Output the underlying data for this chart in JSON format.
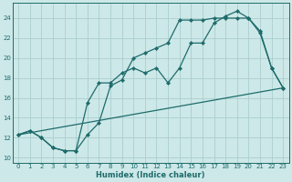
{
  "xlabel": "Humidex (Indice chaleur)",
  "xlim": [
    -0.5,
    23.5
  ],
  "ylim": [
    9.5,
    25.5
  ],
  "xticks": [
    0,
    1,
    2,
    3,
    4,
    5,
    6,
    7,
    8,
    9,
    10,
    11,
    12,
    13,
    14,
    15,
    16,
    17,
    18,
    19,
    20,
    21,
    22,
    23
  ],
  "yticks": [
    10,
    12,
    14,
    16,
    18,
    20,
    22,
    24
  ],
  "background_color": "#cde8e8",
  "grid_color": "#aacece",
  "line_color": "#1e6b6b",
  "line1_x": [
    0,
    1,
    2,
    3,
    4,
    5,
    6,
    7,
    8,
    9,
    10,
    11,
    12,
    13,
    14,
    15,
    16,
    17,
    18,
    19,
    20,
    21,
    22,
    23
  ],
  "line1_y": [
    12.3,
    12.7,
    12.0,
    11.0,
    10.7,
    10.7,
    12.3,
    13.5,
    17.2,
    17.8,
    20.0,
    20.5,
    21.0,
    21.5,
    23.8,
    23.8,
    23.8,
    24.0,
    24.0,
    24.0,
    24.0,
    22.7,
    19.0,
    17.0
  ],
  "line2_x": [
    0,
    1,
    2,
    3,
    4,
    5,
    6,
    7,
    8,
    9,
    10,
    11,
    12,
    13,
    14,
    15,
    16,
    17,
    18,
    19,
    20,
    21,
    22,
    23
  ],
  "line2_y": [
    12.3,
    12.7,
    12.0,
    11.0,
    10.7,
    10.7,
    15.5,
    17.5,
    17.5,
    18.5,
    19.0,
    18.5,
    19.0,
    17.5,
    19.0,
    21.5,
    21.5,
    23.5,
    24.2,
    24.7,
    24.0,
    22.5,
    19.0,
    17.0
  ],
  "line3_x": [
    0,
    23
  ],
  "line3_y": [
    12.3,
    17.0
  ],
  "marker": "D",
  "markersize": 2.2,
  "linewidth": 0.9
}
